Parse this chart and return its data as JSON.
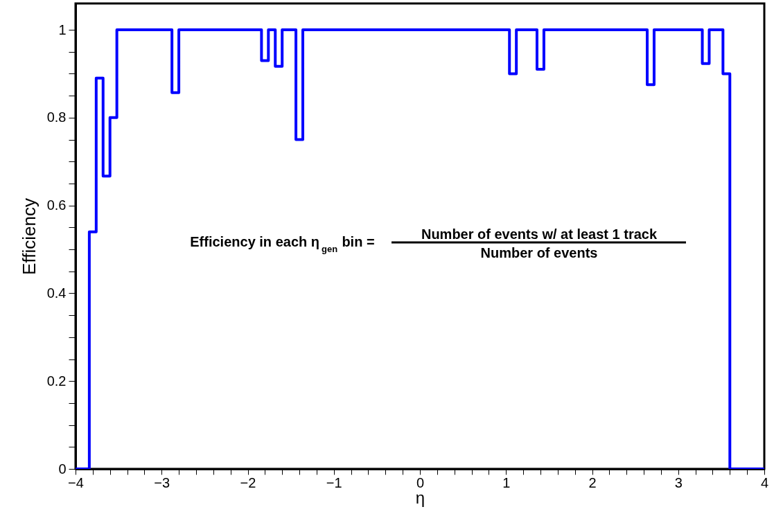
{
  "chart_data": {
    "type": "histogram",
    "xlabel": "η",
    "ylabel": "Efficiency",
    "bins": [
      -4,
      -3.92,
      -3.84,
      -3.76,
      -3.68,
      -3.6,
      -3.52,
      -3.44,
      -3.36,
      -3.28,
      -3.2,
      -3.12,
      -3.04,
      -2.96,
      -2.88,
      -2.8,
      -2.72,
      -2.64,
      -2.56,
      -2.48,
      -2.4,
      -2.32,
      -2.24,
      -2.16,
      -2.08,
      -2,
      -1.92,
      -1.84,
      -1.76,
      -1.68,
      -1.6,
      -1.52,
      -1.44,
      -1.36,
      -1.28,
      -1.2,
      -1.12,
      -1.04,
      -0.96,
      -0.88,
      -0.8,
      -0.72,
      -0.64,
      -0.56,
      -0.48,
      -0.4,
      -0.32,
      -0.24,
      -0.16,
      -0.08,
      0,
      0.08,
      0.16,
      0.24,
      0.32,
      0.4,
      0.48,
      0.56,
      0.64,
      0.72,
      0.8,
      0.88,
      0.96,
      1.04,
      1.12,
      1.2,
      1.28,
      1.36,
      1.44,
      1.52,
      1.6,
      1.68,
      1.76,
      1.84,
      1.92,
      2,
      2.08,
      2.16,
      2.24,
      2.32,
      2.4,
      2.48,
      2.56,
      2.64,
      2.72,
      2.8,
      2.88,
      2.96,
      3.04,
      3.12,
      3.2,
      3.28,
      3.36,
      3.44,
      3.52,
      3.6,
      3.68,
      3.76,
      3.84,
      3.92,
      4
    ],
    "values": [
      0,
      0,
      0.54,
      0.89,
      0.667,
      0.8,
      1,
      1,
      1,
      1,
      1,
      1,
      1,
      1,
      0.857,
      1,
      1,
      1,
      1,
      1,
      1,
      1,
      1,
      1,
      1,
      1,
      1,
      0.93,
      1,
      0.917,
      1,
      1,
      0.75,
      1,
      1,
      1,
      1,
      1,
      1,
      1,
      1,
      1,
      1,
      1,
      1,
      1,
      1,
      1,
      1,
      1,
      1,
      1,
      1,
      1,
      1,
      1,
      1,
      1,
      1,
      1,
      1,
      1,
      1,
      0.9,
      1,
      1,
      1,
      0.91,
      1,
      1,
      1,
      1,
      1,
      1,
      1,
      1,
      1,
      1,
      1,
      1,
      1,
      1,
      1,
      0.875,
      1,
      1,
      1,
      1,
      1,
      1,
      1,
      0.923,
      1,
      1,
      0.9,
      0,
      0,
      0,
      0,
      0
    ],
    "color": "#0000ff",
    "xlim": [
      -4,
      4
    ],
    "xticks": [
      -4,
      {
        "value": -3.8,
        "label": null
      },
      {
        "value": -3.6,
        "label": null
      },
      {
        "value": -3.4,
        "label": null
      },
      {
        "value": -3.2,
        "label": null
      },
      -3,
      {
        "value": -2.8,
        "label": null
      },
      {
        "value": -2.6,
        "label": null
      },
      {
        "value": -2.4,
        "label": null
      },
      {
        "value": -2.2,
        "label": null
      },
      -2,
      {
        "value": -1.8,
        "label": null
      },
      {
        "value": -1.6,
        "label": null
      },
      {
        "value": -1.4,
        "label": null
      },
      {
        "value": -1.2,
        "label": null
      },
      -1,
      {
        "value": -0.8,
        "label": null
      },
      {
        "value": -0.6,
        "label": null
      },
      {
        "value": -0.4,
        "label": null
      },
      {
        "value": -0.2,
        "label": null
      },
      0,
      {
        "value": 0.2,
        "label": null
      },
      {
        "value": 0.4,
        "label": null
      },
      {
        "value": 0.6,
        "label": null
      },
      {
        "value": 0.8,
        "label": null
      },
      1,
      {
        "value": 1.2,
        "label": null
      },
      {
        "value": 1.4,
        "label": null
      },
      {
        "value": 1.6,
        "label": null
      },
      {
        "value": 1.8,
        "label": null
      },
      2,
      {
        "value": 2.2,
        "label": null
      },
      {
        "value": 2.4,
        "label": null
      },
      {
        "value": 2.6,
        "label": null
      },
      {
        "value": 2.8,
        "label": null
      },
      3,
      {
        "value": 3.2,
        "label": null
      },
      {
        "value": 3.4,
        "label": null
      },
      {
        "value": 3.6,
        "label": null
      },
      {
        "value": 3.8,
        "label": null
      },
      4
    ],
    "ylim": [
      0,
      1.06
    ],
    "yticks": [
      0,
      {
        "value": 0.05,
        "label": null
      },
      {
        "value": 0.1,
        "label": null
      },
      {
        "value": 0.15,
        "label": null
      },
      0.2,
      {
        "value": 0.25,
        "label": null
      },
      {
        "value": 0.3,
        "label": null
      },
      {
        "value": 0.35,
        "label": null
      },
      0.4,
      {
        "value": 0.45,
        "label": null
      },
      {
        "value": 0.5,
        "label": null
      },
      {
        "value": 0.55,
        "label": null
      },
      0.6,
      {
        "value": 0.65,
        "label": null
      },
      {
        "value": 0.7,
        "label": null
      },
      {
        "value": 0.75,
        "label": null
      },
      0.8,
      {
        "value": 0.85,
        "label": null
      },
      {
        "value": 0.9,
        "label": null
      },
      {
        "value": 0.95,
        "label": null
      },
      1
    ],
    "grid": false,
    "annotations": [
      "Efficiency in each η$_{gen}$ bin =",
      "Number of events w/ at least 1 track",
      "Number of events"
    ]
  }
}
